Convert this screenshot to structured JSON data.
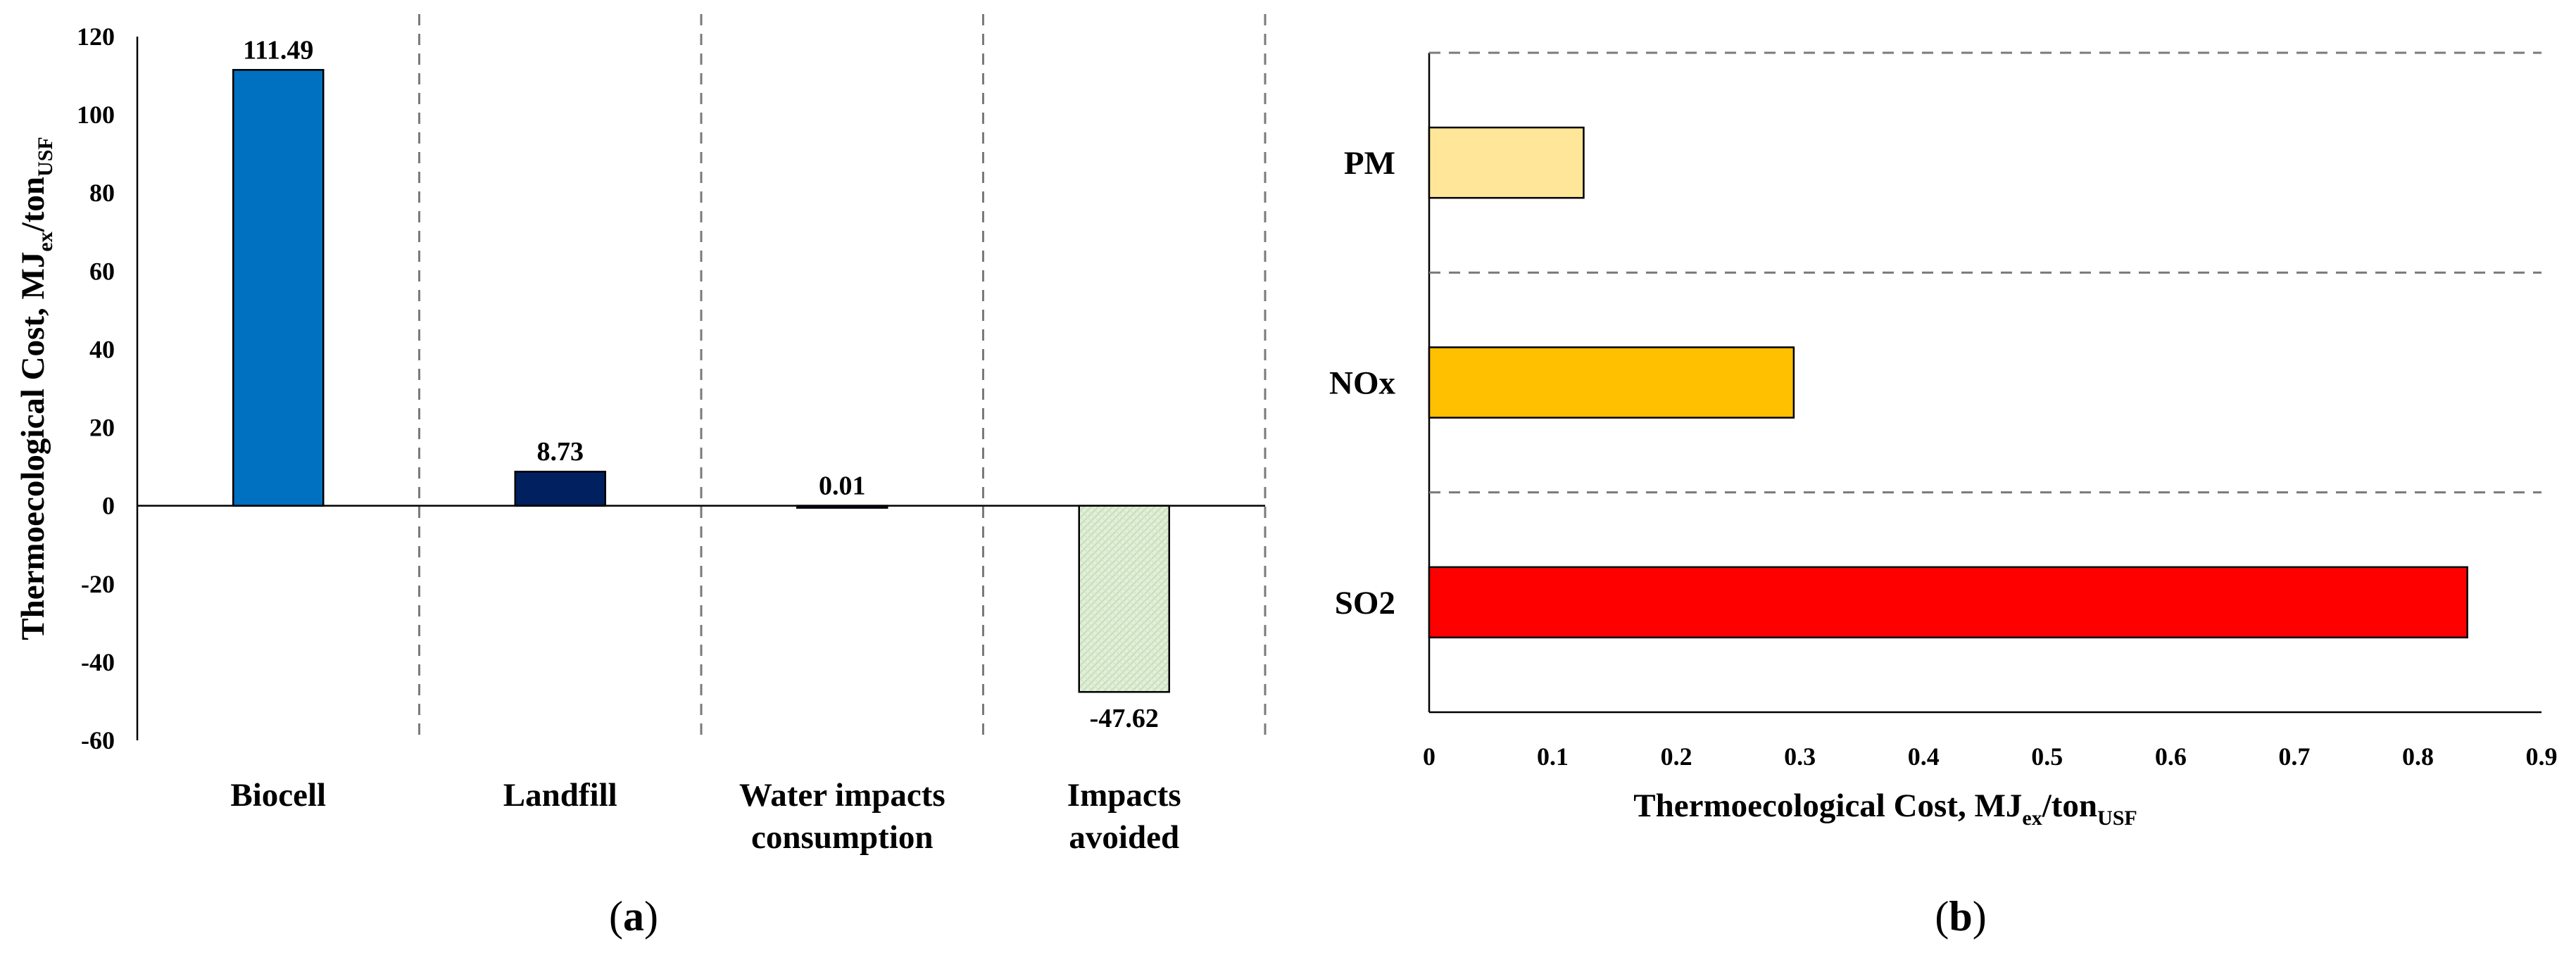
{
  "chart_data": [
    {
      "type": "bar",
      "panel_label": "a",
      "categories": [
        "Biocell",
        "Landfill",
        "Water impacts consumption",
        "Impacts avoided"
      ],
      "category_lines": [
        [
          "Biocell"
        ],
        [
          "Landfill"
        ],
        [
          "Water impacts",
          "consumption"
        ],
        [
          "Impacts",
          "avoided"
        ]
      ],
      "values": [
        111.49,
        8.73,
        0.01,
        -47.62
      ],
      "data_labels": [
        "111.49",
        "8.73",
        "0.01",
        "-47.62"
      ],
      "colors": [
        "#0070C0",
        "#002060",
        "#002060",
        "#E2EFD9"
      ],
      "ylabel": "Thermoecological Cost, MJ",
      "ylabel_sub1": "ex",
      "ylabel_mid": "/ton",
      "ylabel_sub2": "USF",
      "ylim": [
        -60,
        120
      ],
      "yticks": [
        -60,
        -40,
        -20,
        0,
        20,
        40,
        60,
        80,
        100,
        120
      ],
      "grid": false,
      "category_separators": "dashed"
    },
    {
      "type": "bar",
      "orientation": "horizontal",
      "panel_label": "b",
      "categories": [
        "PM",
        "NOx",
        "SO2"
      ],
      "values": [
        0.125,
        0.295,
        0.84
      ],
      "colors": [
        "#FFE699",
        "#FFC000",
        "#FF0000"
      ],
      "xlabel": "Thermoecological Cost, MJ",
      "xlabel_sub1": "ex",
      "xlabel_mid": "/ton",
      "xlabel_sub2": "USF",
      "xlim": [
        0,
        0.9
      ],
      "xticks": [
        0,
        0.1,
        0.2,
        0.3,
        0.4,
        0.5,
        0.6,
        0.7,
        0.8,
        0.9
      ],
      "grid": false,
      "category_separators": "dashed"
    }
  ]
}
